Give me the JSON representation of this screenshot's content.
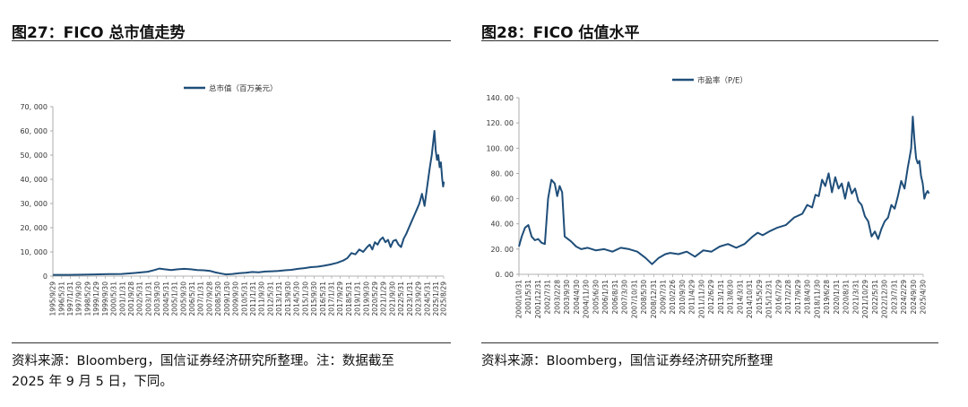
{
  "chart_data": [
    {
      "type": "line",
      "fig_title": "图27：FICO 总市值走势",
      "source_lines": [
        "资料来源：Bloomberg，国信证券经济研究所整理。注：数据截至",
        "2025 年 9 月 5 日，下同。"
      ],
      "legend": "总市值（百万美元）",
      "legend_position": "top-center",
      "series_color": "#1f4e79",
      "grid": false,
      "ylim": [
        0,
        70000
      ],
      "yticks": [
        "0",
        "10, 000",
        "20, 000",
        "30, 000",
        "40, 000",
        "50, 000",
        "60, 000",
        "70, 000"
      ],
      "xticks": [
        "1995/9/29",
        "1996/5/31",
        "1997/1/31",
        "1997/9/30",
        "1998/5/29",
        "1999/1/29",
        "1999/9/30",
        "2000/5/31",
        "2001/1/31",
        "2001/9/28",
        "2002/5/31",
        "2003/1/31",
        "2003/9/30",
        "2004/5/31",
        "2005/1/31",
        "2005/9/30",
        "2006/5/31",
        "2007/1/31",
        "2007/9/28",
        "2008/5/30",
        "2009/1/30",
        "2009/9/30",
        "2010/5/31",
        "2011/1/31",
        "2011/9/30",
        "2012/5/31",
        "2013/1/31",
        "2013/9/30",
        "2014/5/30",
        "2015/1/30",
        "2015/9/30",
        "2016/5/31",
        "2017/1/31",
        "2017/9/29",
        "2018/5/31",
        "2019/1/31",
        "2019/9/30",
        "2020/5/29",
        "2021/1/29",
        "2021/9/30",
        "2022/5/31",
        "2023/1/31",
        "2023/9/29",
        "2024/5/31",
        "2025/1/31",
        "2025/8/29"
      ],
      "x": [
        1995.75,
        1997.0,
        1998.0,
        1999.0,
        2000.0,
        2001.0,
        2002.0,
        2003.0,
        2003.5,
        2003.9,
        2004.3,
        2004.8,
        2005.3,
        2005.8,
        2006.3,
        2006.8,
        2007.3,
        2007.8,
        2008.2,
        2008.7,
        2009.0,
        2009.5,
        2010.0,
        2010.5,
        2011.0,
        2011.5,
        2012.0,
        2012.5,
        2013.0,
        2013.5,
        2014.0,
        2014.5,
        2015.0,
        2015.5,
        2016.0,
        2016.5,
        2017.0,
        2017.5,
        2018.0,
        2018.3,
        2018.6,
        2018.9,
        2019.2,
        2019.5,
        2019.8,
        2020.0,
        2020.2,
        2020.4,
        2020.6,
        2020.8,
        2021.0,
        2021.2,
        2021.4,
        2021.6,
        2021.8,
        2022.0,
        2022.2,
        2022.4,
        2022.6,
        2022.8,
        2023.0,
        2023.2,
        2023.4,
        2023.6,
        2023.8,
        2024.0,
        2024.2,
        2024.4,
        2024.6,
        2024.75,
        2024.85,
        2024.95,
        2025.05,
        2025.15,
        2025.25,
        2025.35,
        2025.45,
        2025.55,
        2025.62,
        2025.68
      ],
      "y": [
        500,
        500,
        600,
        700,
        800,
        900,
        1300,
        1800,
        2500,
        3100,
        2800,
        2500,
        2800,
        3000,
        2800,
        2500,
        2400,
        2100,
        1500,
        1000,
        700,
        900,
        1200,
        1400,
        1700,
        1600,
        1900,
        2000,
        2100,
        2400,
        2600,
        3000,
        3300,
        3700,
        3900,
        4300,
        4800,
        5500,
        6500,
        7500,
        9500,
        9000,
        11000,
        10000,
        12000,
        13000,
        11000,
        14000,
        13000,
        15000,
        16000,
        14000,
        15000,
        12000,
        14500,
        15000,
        13000,
        12000,
        15500,
        17500,
        20000,
        22500,
        25000,
        27500,
        30000,
        34000,
        29000,
        37000,
        45000,
        50000,
        55000,
        60000,
        52000,
        48000,
        50000,
        45000,
        47000,
        40000,
        37000,
        39000
      ]
    },
    {
      "type": "line",
      "fig_title": "图28：FICO 估值水平",
      "source_lines": [
        "资料来源：Bloomberg，国信证券经济研究所整理"
      ],
      "legend": "市盈率（P/E）",
      "legend_position": "top-center",
      "series_color": "#1f4e79",
      "grid": false,
      "ylim": [
        0,
        140
      ],
      "yticks": [
        "0. 00",
        "20. 00",
        "40. 00",
        "60. 00",
        "80. 00",
        "100. 00",
        "120. 00",
        "140. 00"
      ],
      "xticks": [
        "2000/10/31",
        "2001/5/31",
        "2001/12/31",
        "2002/7/31",
        "2003/2/28",
        "2003/9/30",
        "2004/4/30",
        "2004/11/30",
        "2005/6/30",
        "2006/1/31",
        "2006/8/31",
        "2007/3/30",
        "2007/10/31",
        "2008/5/30",
        "2008/12/31",
        "2009/7/31",
        "2010/2/26",
        "2010/9/30",
        "2011/4/29",
        "2011/11/30",
        "2012/6/29",
        "2013/1/31",
        "2013/8/30",
        "2014/3/31",
        "2014/10/31",
        "2015/5/29",
        "2015/12/31",
        "2016/7/29",
        "2017/2/28",
        "2017/9/29",
        "2018/4/30",
        "2018/11/30",
        "2019/6/28",
        "2020/1/31",
        "2020/8/31",
        "2021/3/31",
        "2021/10/29",
        "2022/5/31",
        "2022/12/30",
        "2023/7/31",
        "2024/2/29",
        "2024/9/30",
        "2025/4/30"
      ],
      "x": [
        2000.83,
        2001.0,
        2001.2,
        2001.4,
        2001.6,
        2001.8,
        2002.0,
        2002.2,
        2002.4,
        2002.6,
        2002.8,
        2003.0,
        2003.15,
        2003.3,
        2003.45,
        2003.6,
        2003.8,
        2004.0,
        2004.3,
        2004.6,
        2005.0,
        2005.5,
        2006.0,
        2006.5,
        2007.0,
        2007.5,
        2008.0,
        2008.5,
        2008.9,
        2009.3,
        2009.7,
        2010.0,
        2010.5,
        2011.0,
        2011.5,
        2012.0,
        2012.5,
        2013.0,
        2013.5,
        2014.0,
        2014.5,
        2015.0,
        2015.3,
        2015.6,
        2016.0,
        2016.5,
        2017.0,
        2017.5,
        2018.0,
        2018.3,
        2018.6,
        2018.8,
        2019.0,
        2019.2,
        2019.4,
        2019.6,
        2019.8,
        2020.0,
        2020.2,
        2020.4,
        2020.6,
        2020.8,
        2021.0,
        2021.2,
        2021.4,
        2021.6,
        2021.8,
        2022.0,
        2022.2,
        2022.4,
        2022.6,
        2022.8,
        2023.0,
        2023.2,
        2023.4,
        2023.6,
        2023.8,
        2024.0,
        2024.2,
        2024.4,
        2024.5,
        2024.6,
        2024.7,
        2024.8,
        2024.9,
        2025.0,
        2025.1,
        2025.2,
        2025.3,
        2025.4,
        2025.5,
        2025.6,
        2025.68
      ],
      "y": [
        22,
        30,
        37,
        39,
        30,
        27,
        28,
        25,
        24,
        60,
        75,
        72,
        62,
        70,
        65,
        30,
        28,
        26,
        22,
        20,
        21,
        19,
        20,
        18,
        21,
        20,
        18,
        13,
        8,
        13,
        16,
        17,
        16,
        18,
        14,
        19,
        18,
        22,
        24,
        21,
        24,
        30,
        33,
        31,
        34,
        37,
        39,
        45,
        48,
        55,
        53,
        63,
        62,
        75,
        70,
        80,
        65,
        77,
        68,
        72,
        60,
        73,
        64,
        68,
        58,
        55,
        46,
        42,
        30,
        34,
        28,
        36,
        42,
        45,
        55,
        52,
        62,
        74,
        68,
        85,
        92,
        100,
        125,
        106,
        92,
        88,
        90,
        78,
        72,
        60,
        64,
        66,
        64
      ]
    }
  ]
}
